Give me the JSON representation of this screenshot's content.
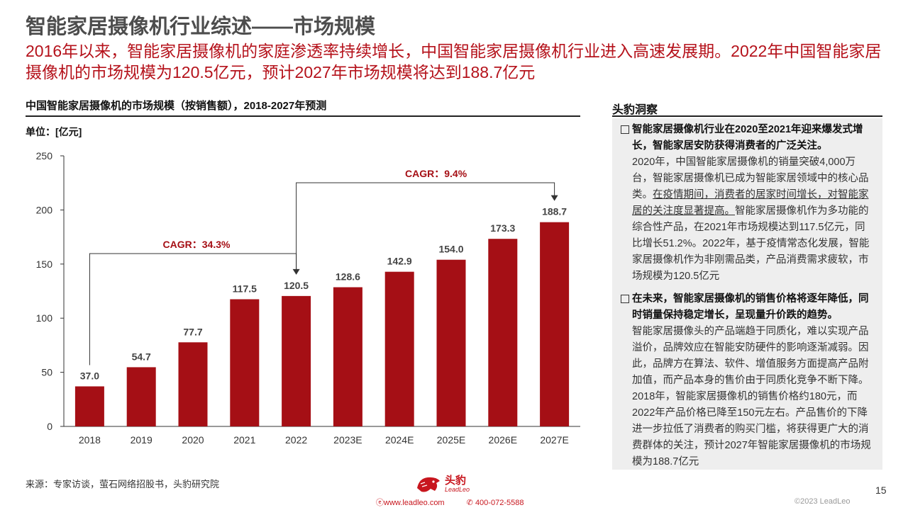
{
  "header": {
    "title": "智能家居摄像机行业综述——市场规模",
    "subtitle": "2016年以来，智能家居摄像机的家庭渗透率持续增长，中国智能家居摄像机行业进入高速发展期。2022年中国智能家居摄像机的市场规模为120.5亿元，预计2027年市场规模将达到188.7亿元"
  },
  "chart_panel": {
    "title": "中国智能家居摄像机的市场规模（按销售额），2018-2027年预测",
    "unit": "单位：[亿元]"
  },
  "chart_data": {
    "type": "bar",
    "categories": [
      "2018",
      "2019",
      "2020",
      "2021",
      "2022",
      "2023E",
      "2024E",
      "2025E",
      "2026E",
      "2027E"
    ],
    "values": [
      37.0,
      54.7,
      77.7,
      117.5,
      120.5,
      128.6,
      142.9,
      154.0,
      173.3,
      188.7
    ],
    "value_labels": [
      "37.0",
      "54.7",
      "77.7",
      "117.5",
      "120.5",
      "128.6",
      "142.9",
      "154.0",
      "173.3",
      "188.7"
    ],
    "ylim": [
      0,
      250
    ],
    "yticks": [
      0,
      50,
      100,
      150,
      200,
      250
    ],
    "bar_color": "#a50f15",
    "annotations": [
      {
        "label": "CAGR：34.3%",
        "from": "2018",
        "to": "2022"
      },
      {
        "label": "CAGR：9.4%",
        "from": "2022",
        "to": "2027E"
      }
    ]
  },
  "insights": {
    "header": "头豹洞察",
    "bullets": [
      {
        "head": "智能家居摄像机行业在2020至2021年迎来爆发式增长，智能家居安防获得消费者的广泛关注。",
        "body_pre": "2020年，中国智能家居摄像机的销量突破4,000万台，智能家居摄像机已成为智能家居领域中的核心品类。",
        "body_underline": "在疫情期间，消费者的居家时间增长，对智能家居的关注度显著提高。",
        "body_post": "智能家居摄像机作为多功能的综合性产品，在2021年市场规模达到117.5亿元，同比增长51.2%。2022年，基于疫情常态化发展，智能家居摄像机作为非刚需品类，产品消费需求疲软，市场规模为120.5亿元"
      },
      {
        "head": "在未来，智能家居摄像机的销售价格将逐年降低，同时销量保持稳定增长，呈现量升价跌的趋势。",
        "body": "智能家居摄像头的产品端趋于同质化，难以实现产品溢价，品牌效应在智能安防硬件的影响逐渐减弱。因此，品牌方在算法、软件、增值服务方面提高产品附加值，而产品本身的售价由于同质化竞争不断下降。2018年，智能家居摄像机的销售价格约180元，而2022年产品价格已降至150元左右。产品售价的下降进一步拉低了消费者的购买门槛，将获得更广大的消费群体的关注，预计2027年智能家居摄像机的市场规模为188.7亿元"
      }
    ]
  },
  "footer": {
    "source": "来源：专家访谈，萤石网络招股书，头豹研究院",
    "logo_cn": "头豹",
    "logo_en": "LeadLeo",
    "website": "www.leadleo.com",
    "phone": "400-072-5588",
    "page_number": "15",
    "copyright": "©2023 LeadLeo"
  }
}
